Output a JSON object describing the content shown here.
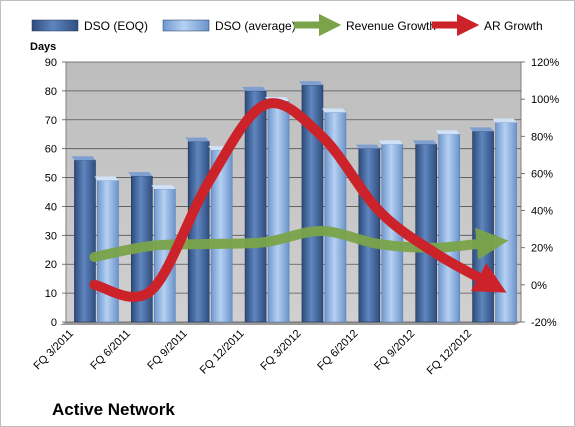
{
  "chart_data": {
    "type": "bar",
    "title": "Active Network",
    "y_left_label": "Days",
    "categories": [
      "FQ 3/2011",
      "FQ 6/2011",
      "FQ 9/2011",
      "FQ 12/2011",
      "FQ 3/2012",
      "FQ 6/2012",
      "FQ 9/2012",
      "FQ 12/2012"
    ],
    "ylim_left": [
      0,
      90
    ],
    "yticks_left": [
      0,
      10,
      20,
      30,
      40,
      50,
      60,
      70,
      80,
      90
    ],
    "ylim_right": [
      -20,
      120
    ],
    "yticks_right": [
      "-20%",
      "0%",
      "20%",
      "40%",
      "60%",
      "80%",
      "100%",
      "120%"
    ],
    "bar_series": [
      {
        "name": "DSO (EOQ)",
        "color": "#4a6fa5",
        "values": [
          56,
          50.5,
          62.5,
          80,
          82,
          60,
          61.5,
          66
        ]
      },
      {
        "name": "DSO (average)",
        "color": "#8fb4e3",
        "values": [
          49,
          46,
          59.5,
          76.5,
          72.5,
          61.5,
          65,
          69
        ]
      }
    ],
    "line_series": [
      {
        "name": "Revenue Growth",
        "color": "#7ba44a",
        "values": [
          15,
          21,
          22,
          23,
          29,
          22,
          20,
          23
        ]
      },
      {
        "name": "AR Growth",
        "color": "#cc2229",
        "values": [
          0,
          -3,
          55,
          97,
          80,
          40,
          17,
          0
        ]
      }
    ],
    "legend_position": "top",
    "grid": true,
    "plot_background": "#c0c0c0"
  }
}
